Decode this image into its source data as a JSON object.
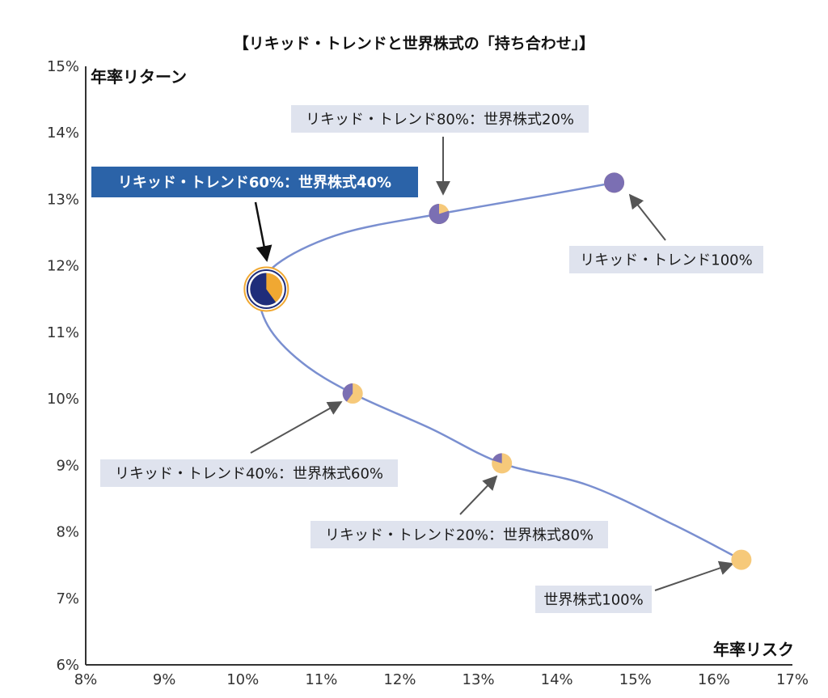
{
  "chart_data": {
    "type": "scatter",
    "title": "【リキッド・トレンドと世界株式の「持ち合わせ」】",
    "xlabel": "年率リスク",
    "ylabel": "年率リターン",
    "xlim": [
      8,
      17
    ],
    "ylim": [
      6,
      15
    ],
    "xticks": [
      "8%",
      "9%",
      "10%",
      "11%",
      "12%",
      "13%",
      "14%",
      "15%",
      "16%",
      "17%"
    ],
    "yticks": [
      "6%",
      "7%",
      "8%",
      "9%",
      "10%",
      "11%",
      "12%",
      "13%",
      "14%",
      "15%"
    ],
    "curve": [
      [
        16.35,
        7.58
      ],
      [
        15.5,
        8.1
      ],
      [
        14.4,
        8.7
      ],
      [
        13.3,
        9.03
      ],
      [
        12.4,
        9.55
      ],
      [
        11.4,
        10.08
      ],
      [
        10.75,
        10.55
      ],
      [
        10.32,
        11.1
      ],
      [
        10.22,
        11.65
      ],
      [
        10.5,
        12.08
      ],
      [
        11.3,
        12.5
      ],
      [
        12.5,
        12.78
      ],
      [
        13.8,
        13.05
      ],
      [
        14.73,
        13.25
      ]
    ],
    "points": [
      {
        "name": "リキッド・トレンド100%",
        "label": "リキッド・トレンド100%",
        "lt": 100,
        "eq": 0,
        "risk": 14.73,
        "ret": 13.25
      },
      {
        "name": "リキッド・トレンド80%：世界株式20%",
        "label": "リキッド・トレンド80%：世界株式20%",
        "lt": 80,
        "eq": 20,
        "risk": 12.5,
        "ret": 12.78
      },
      {
        "name": "リキッド・トレンド60%：世界株式40%",
        "label": "リキッド・トレンド60%：世界株式40%",
        "lt": 60,
        "eq": 40,
        "risk": 10.3,
        "ret": 11.65,
        "highlight": true
      },
      {
        "name": "リキッド・トレンド40%：世界株式60%",
        "label": "リキッド・トレンド40%：世界株式60%",
        "lt": 40,
        "eq": 60,
        "risk": 11.4,
        "ret": 10.08
      },
      {
        "name": "リキッド・トレンド20%：世界株式80%",
        "label": "リキッド・トレンド20%：世界株式80%",
        "lt": 20,
        "eq": 80,
        "risk": 13.3,
        "ret": 9.03
      },
      {
        "name": "世界株式100%",
        "label": "世界株式100%",
        "lt": 0,
        "eq": 100,
        "risk": 16.35,
        "ret": 7.58
      }
    ],
    "colors": {
      "liquid_trend": "#7b6fb3",
      "liquid_trend_highlight": "#1f2d7a",
      "equity": "#f6c97a",
      "equity_highlight": "#f0a832",
      "curve": "#7a8fd0",
      "label_bg": "#dfe3ee",
      "label_bg_highlight": "#2b63a8",
      "arrow": "#555555",
      "arrow_highlight": "#111111",
      "axis": "#333333"
    }
  }
}
